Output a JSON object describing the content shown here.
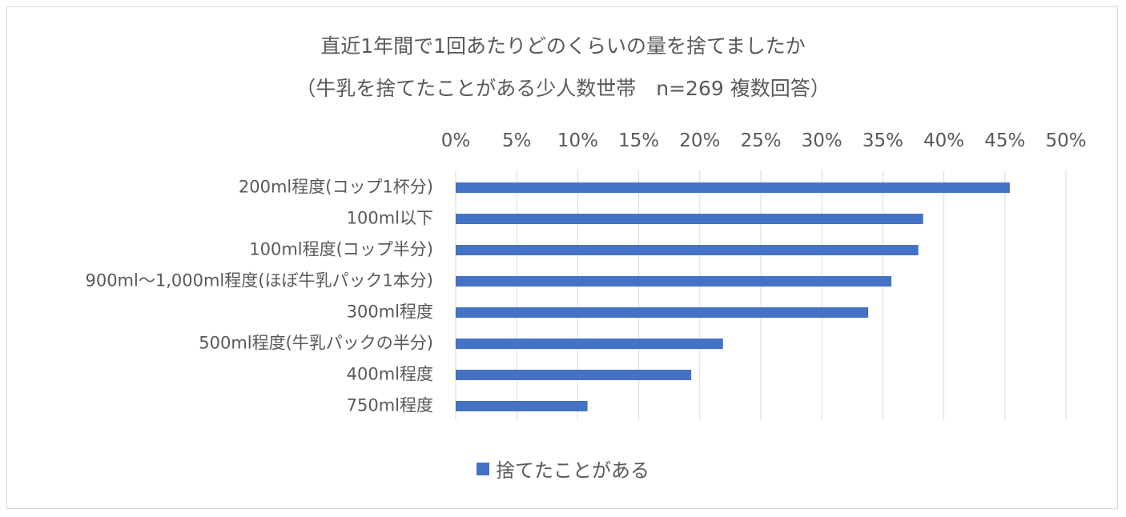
{
  "chart_data": {
    "type": "bar",
    "orientation": "horizontal",
    "title": "直近1年間で1回あたりどのくらいの量を捨てましたか",
    "subtitle": "（牛乳を捨てたことがある少人数世帯　n=269 複数回答）",
    "xlabel": "",
    "ylabel": "",
    "xlim": [
      0,
      50
    ],
    "x_ticks": [
      0,
      5,
      10,
      15,
      20,
      25,
      30,
      35,
      40,
      45,
      50
    ],
    "x_tick_labels": [
      "0%",
      "5%",
      "10%",
      "15%",
      "20%",
      "25%",
      "30%",
      "35%",
      "40%",
      "45%",
      "50%"
    ],
    "x_axis_position": "top",
    "grid": true,
    "categories": [
      "200ml程度(コップ1杯分)",
      "100ml以下",
      "100ml程度(コップ半分)",
      "900ml～1,000ml程度(ほぼ牛乳パック1本分)",
      "300ml程度",
      "500ml程度(牛乳パックの半分)",
      "400ml程度",
      "750ml程度"
    ],
    "series": [
      {
        "name": "捨てたことがある",
        "color": "#4472c4",
        "values": [
          45.4,
          38.3,
          37.9,
          35.7,
          33.8,
          21.9,
          19.3,
          10.8
        ]
      }
    ],
    "legend_position": "bottom"
  }
}
